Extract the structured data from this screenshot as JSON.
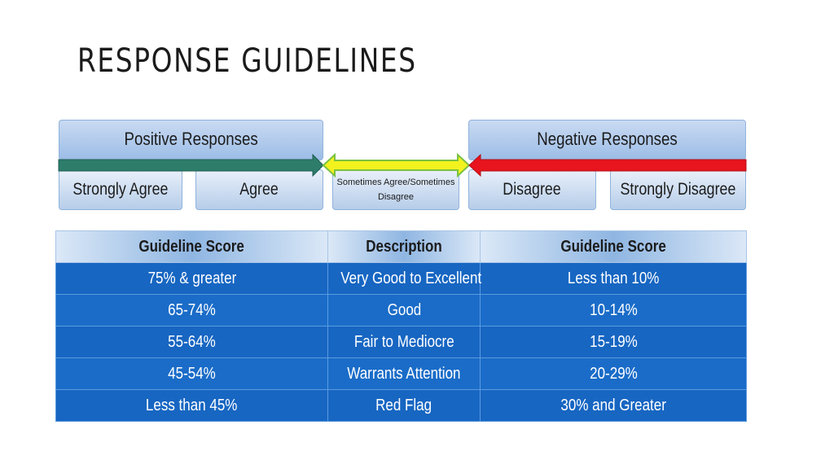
{
  "slide": {
    "title": "RESPONSE GUIDELINES"
  },
  "scale": {
    "positive_header": "Positive Responses",
    "negative_header": "Negative Responses",
    "options": [
      "Strongly Agree",
      "Agree",
      "Sometimes Agree/Sometimes Disagree",
      "Disagree",
      "Strongly Disagree"
    ],
    "colors": {
      "positive_arrow": "#2e7d6b",
      "neutral_arrow": "#f2f21e",
      "negative_arrow": "#e8141e"
    }
  },
  "table": {
    "headers": [
      "Guideline Score",
      "Description",
      "Guideline Score"
    ],
    "rows": [
      [
        "75% & greater",
        "Very Good to Excellent",
        "Less than 10%"
      ],
      [
        "65-74%",
        "Good",
        "10-14%"
      ],
      [
        "55-64%",
        "Fair to Mediocre",
        "15-19%"
      ],
      [
        "45-54%",
        "Warrants Attention",
        "20-29%"
      ],
      [
        "Less than 45%",
        "Red Flag",
        "30% and Greater"
      ]
    ]
  }
}
